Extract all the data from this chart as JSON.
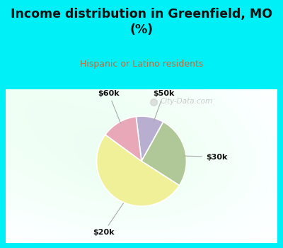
{
  "title": "Income distribution in Greenfield, MO\n(%)",
  "subtitle": "Hispanic or Latino residents",
  "slices": [
    {
      "label": "$50k",
      "value": 10,
      "color": "#b8aed0"
    },
    {
      "label": "$30k",
      "value": 26,
      "color": "#b0c898"
    },
    {
      "label": "$20k",
      "value": 51,
      "color": "#f0f098"
    },
    {
      "label": "$60k",
      "value": 13,
      "color": "#e8a8b8"
    }
  ],
  "bg_cyan": "#00f0f8",
  "bg_chart_tl": "#d8f0e8",
  "bg_chart_br": "#e8f8f0",
  "title_color": "#111111",
  "subtitle_color": "#cc6633",
  "label_color": "#111111",
  "watermark": "City-Data.com",
  "startangle": 97
}
